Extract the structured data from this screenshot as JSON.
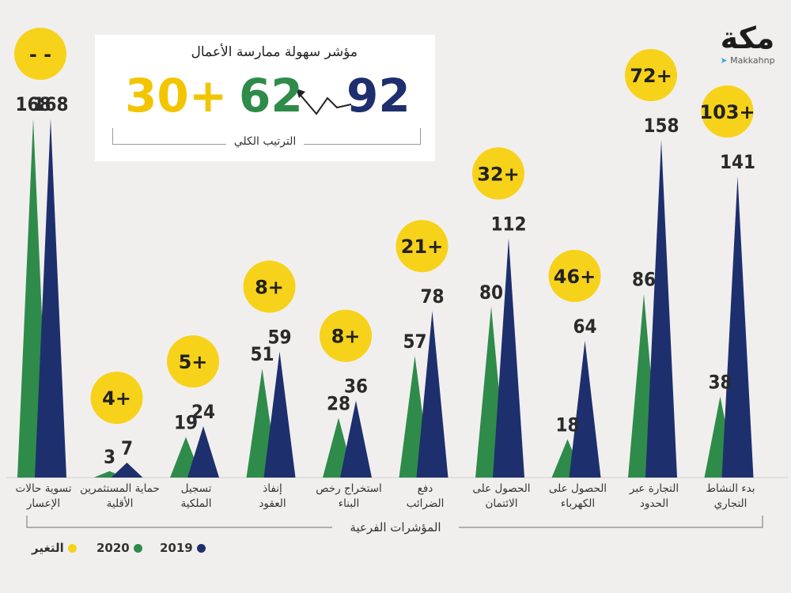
{
  "chart_data": {
    "type": "bar",
    "title": "مؤشر سهولة ممارسة الأعمال",
    "xlabel": "المؤشرات الفرعية",
    "ylabel": "",
    "ylim": [
      0,
      170
    ],
    "categories": [
      "تسوية حالات الإعسار",
      "حماية المستثمرين الأقلية",
      "تسجيل الملكية",
      "إنفاذ العقود",
      "استخراج رخص البناء",
      "دفع الضرائب",
      "الحصول على الائتمان",
      "الحصول على الكهرباء",
      "التجارة عبر الحدود",
      "بدء النشاط التجاري"
    ],
    "category_lines": [
      [
        "تسوية حالات",
        "الإعسار"
      ],
      [
        "حماية المستثمرين",
        "الأقلية"
      ],
      [
        "تسجيل",
        "الملكية"
      ],
      [
        "إنفاذ",
        "العقود"
      ],
      [
        "استخراج رخص",
        "البناء"
      ],
      [
        "دفع",
        "الضرائب"
      ],
      [
        "الحصول على",
        "الائتمان"
      ],
      [
        "الحصول على",
        "الكهرباء"
      ],
      [
        "التجارة عبر",
        "الحدود"
      ],
      [
        "بدء النشاط",
        "التجاري"
      ]
    ],
    "series": [
      {
        "name": "2020",
        "color": "#2f8b4a",
        "values": [
          168,
          3,
          19,
          51,
          28,
          57,
          80,
          18,
          86,
          38
        ]
      },
      {
        "name": "2019",
        "color": "#1e2f6e",
        "values": [
          168,
          7,
          24,
          59,
          36,
          78,
          112,
          64,
          158,
          141
        ]
      }
    ],
    "change": {
      "name": "التغير",
      "color": "#f7d21a",
      "labels": [
        "- -",
        "4+",
        "5+",
        "8+",
        "8+",
        "21+",
        "32+",
        "46+",
        "72+",
        "103+"
      ]
    }
  },
  "summary": {
    "title": "مؤشر سهولة ممارسة الأعمال",
    "rank_2019": "92",
    "rank_2020": "62",
    "rank_change": "30+",
    "overall_label": "الترتيب الكلي"
  },
  "legend": {
    "change_label": "التغير",
    "y2020_label": "2020",
    "y2019_label": "2019"
  },
  "logo": {
    "mark": "مكة",
    "handle": "Makkahnp"
  },
  "colors": {
    "green": "#2f8b4a",
    "navy": "#1e2f6e",
    "yellow": "#f7d21a",
    "background": "#f1efee"
  }
}
